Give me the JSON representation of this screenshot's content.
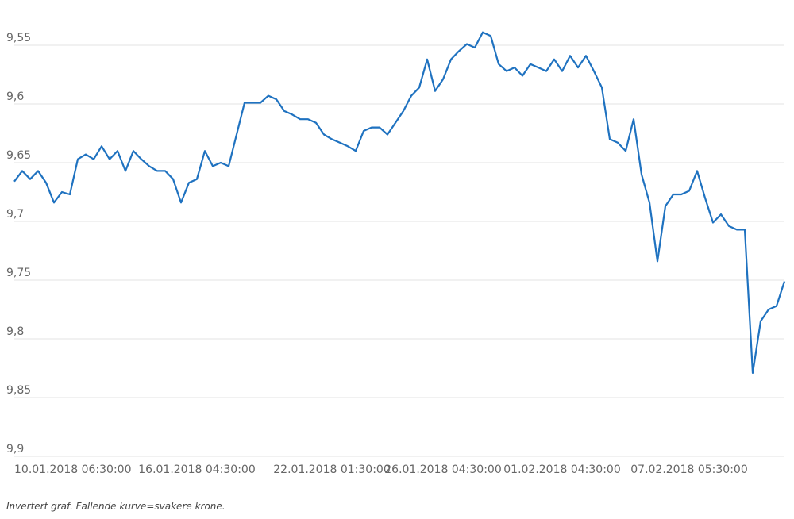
{
  "chart_data": {
    "type": "line",
    "caption": "Invertert graf. Fallende kurve=svakere krone.",
    "categories": [
      "10.01.2018 06:30:00",
      null,
      null,
      null,
      null,
      null,
      null,
      null,
      null,
      null,
      null,
      null,
      null,
      null,
      null,
      null,
      null,
      null,
      null,
      null,
      null,
      null,
      null,
      "16.01.2018 04:30:00",
      null,
      null,
      null,
      null,
      null,
      null,
      null,
      null,
      null,
      null,
      null,
      null,
      null,
      null,
      null,
      null,
      "22.01.2018 01:30:00",
      null,
      null,
      null,
      null,
      null,
      null,
      null,
      null,
      null,
      null,
      null,
      null,
      null,
      "26.01.2018 04:30:00",
      null,
      null,
      null,
      null,
      null,
      null,
      null,
      null,
      null,
      null,
      null,
      null,
      null,
      null,
      "01.02.2018 04:30:00",
      null,
      null,
      null,
      null,
      null,
      null,
      null,
      null,
      null,
      null,
      null,
      null,
      null,
      null,
      null,
      "07.02.2018 05:30:00",
      null,
      null,
      null,
      null,
      null,
      null,
      null,
      null,
      null,
      null,
      null,
      null
    ],
    "values": [
      9.666,
      9.657,
      9.664,
      9.657,
      9.667,
      9.684,
      9.675,
      9.677,
      9.647,
      9.643,
      9.647,
      9.636,
      9.647,
      9.64,
      9.657,
      9.64,
      9.647,
      9.653,
      9.657,
      9.657,
      9.664,
      9.684,
      9.667,
      9.664,
      9.64,
      9.653,
      9.65,
      9.653,
      9.626,
      9.599,
      9.599,
      9.599,
      9.593,
      9.596,
      9.606,
      9.609,
      9.613,
      9.613,
      9.616,
      9.626,
      9.63,
      9.633,
      9.636,
      9.64,
      9.623,
      9.62,
      9.62,
      9.626,
      9.616,
      9.606,
      9.593,
      9.586,
      9.562,
      9.589,
      9.579,
      9.562,
      9.555,
      9.549,
      9.552,
      9.539,
      9.542,
      9.566,
      9.572,
      9.569,
      9.576,
      9.566,
      9.569,
      9.572,
      9.562,
      9.572,
      9.559,
      9.569,
      9.559,
      9.572,
      9.586,
      9.63,
      9.633,
      9.64,
      9.613,
      9.66,
      9.684,
      9.734,
      9.687,
      9.677,
      9.677,
      9.674,
      9.657,
      9.68,
      9.701,
      9.694,
      9.704,
      9.707,
      9.707,
      9.829,
      9.785,
      9.775,
      9.772,
      9.751
    ],
    "color": "#1f72c0",
    "ylim": [
      9.9,
      9.55
    ],
    "yticks": [
      {
        "value": 9.55,
        "label": "9,55"
      },
      {
        "value": 9.6,
        "label": "9,6"
      },
      {
        "value": 9.65,
        "label": "9,65"
      },
      {
        "value": 9.7,
        "label": "9,7"
      },
      {
        "value": 9.75,
        "label": "9,75"
      },
      {
        "value": 9.8,
        "label": "9,8"
      },
      {
        "value": 9.85,
        "label": "9,85"
      },
      {
        "value": 9.9,
        "label": "9,9"
      }
    ],
    "grid": true
  }
}
